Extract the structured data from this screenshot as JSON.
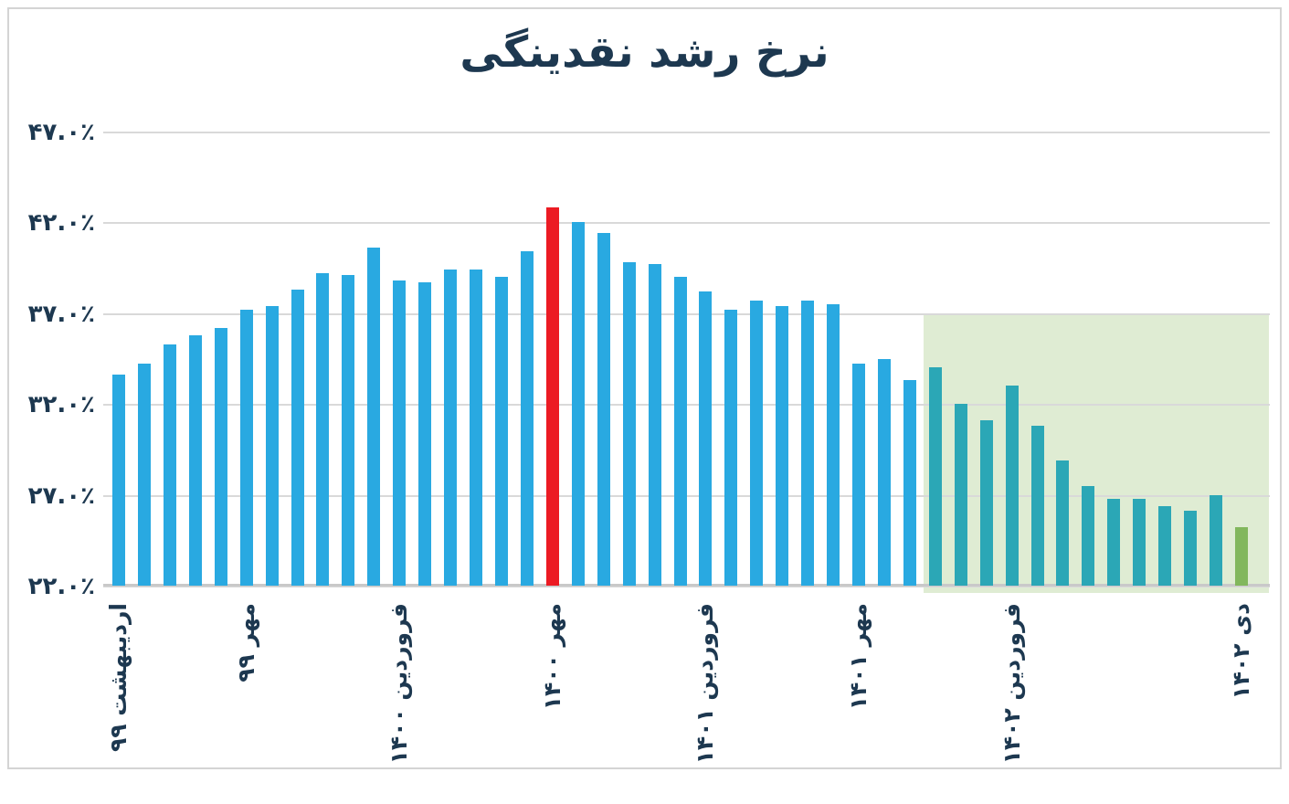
{
  "title": "نرخ رشد نقدینگی",
  "colors": {
    "bar_blue": "#29A9E1",
    "bar_red": "#EC1B23",
    "bar_teal": "#2BA7B6",
    "bar_olive": "#82B75D",
    "highlight_bg": "#DFECD3",
    "gridline": "#D9D9D9",
    "axis_line": "#C9C9C9",
    "text": "#1D3850",
    "frame_border": "#D4D4D4"
  },
  "chart_data": {
    "type": "bar",
    "title": "نرخ رشد نقدینگی",
    "unit": "%",
    "ylim": [
      22,
      47
    ],
    "grid": true,
    "y_ticks": [
      {
        "value": 47.0,
        "label": "۴۷.۰٪"
      },
      {
        "value": 42.0,
        "label": "۴۲.۰٪"
      },
      {
        "value": 37.0,
        "label": "۳۷.۰٪"
      },
      {
        "value": 32.0,
        "label": "۳۲.۰٪"
      },
      {
        "value": 27.0,
        "label": "۲۷.۰٪"
      },
      {
        "value": 22.0,
        "label": "۲۲.۰٪"
      }
    ],
    "x_ticks": [
      {
        "bar_index": 0,
        "label": "اردیبهشت ۹۹"
      },
      {
        "bar_index": 5,
        "label": "مهر ۹۹"
      },
      {
        "bar_index": 11,
        "label": "فروردین ۱۴۰۰"
      },
      {
        "bar_index": 17,
        "label": "مهر ۱۴۰۰"
      },
      {
        "bar_index": 23,
        "label": "فروردین ۱۴۰۱"
      },
      {
        "bar_index": 29,
        "label": "مهر ۱۴۰۱"
      },
      {
        "bar_index": 35,
        "label": "فروردین ۱۴۰۲"
      },
      {
        "bar_index": 44,
        "label": "دی ۱۴۰۲"
      }
    ],
    "values": [
      33.6,
      34.2,
      35.3,
      35.8,
      36.2,
      37.2,
      37.4,
      38.3,
      39.2,
      39.1,
      40.6,
      38.8,
      38.7,
      39.4,
      39.4,
      39.0,
      40.4,
      42.8,
      42.0,
      41.4,
      39.8,
      39.7,
      39.0,
      38.2,
      37.2,
      37.7,
      37.4,
      37.7,
      37.5,
      34.2,
      34.5,
      33.3,
      34.0,
      32.0,
      31.1,
      33.0,
      30.8,
      28.9,
      27.5,
      26.8,
      26.8,
      26.4,
      26.1,
      27.0,
      25.2
    ],
    "special_bars": {
      "red_index": 17,
      "teal_from_index": 32,
      "olive_index": 44
    },
    "highlight_region": {
      "start_bar_index": 32,
      "end_bar_index": 44,
      "top_value": 37.0
    }
  }
}
